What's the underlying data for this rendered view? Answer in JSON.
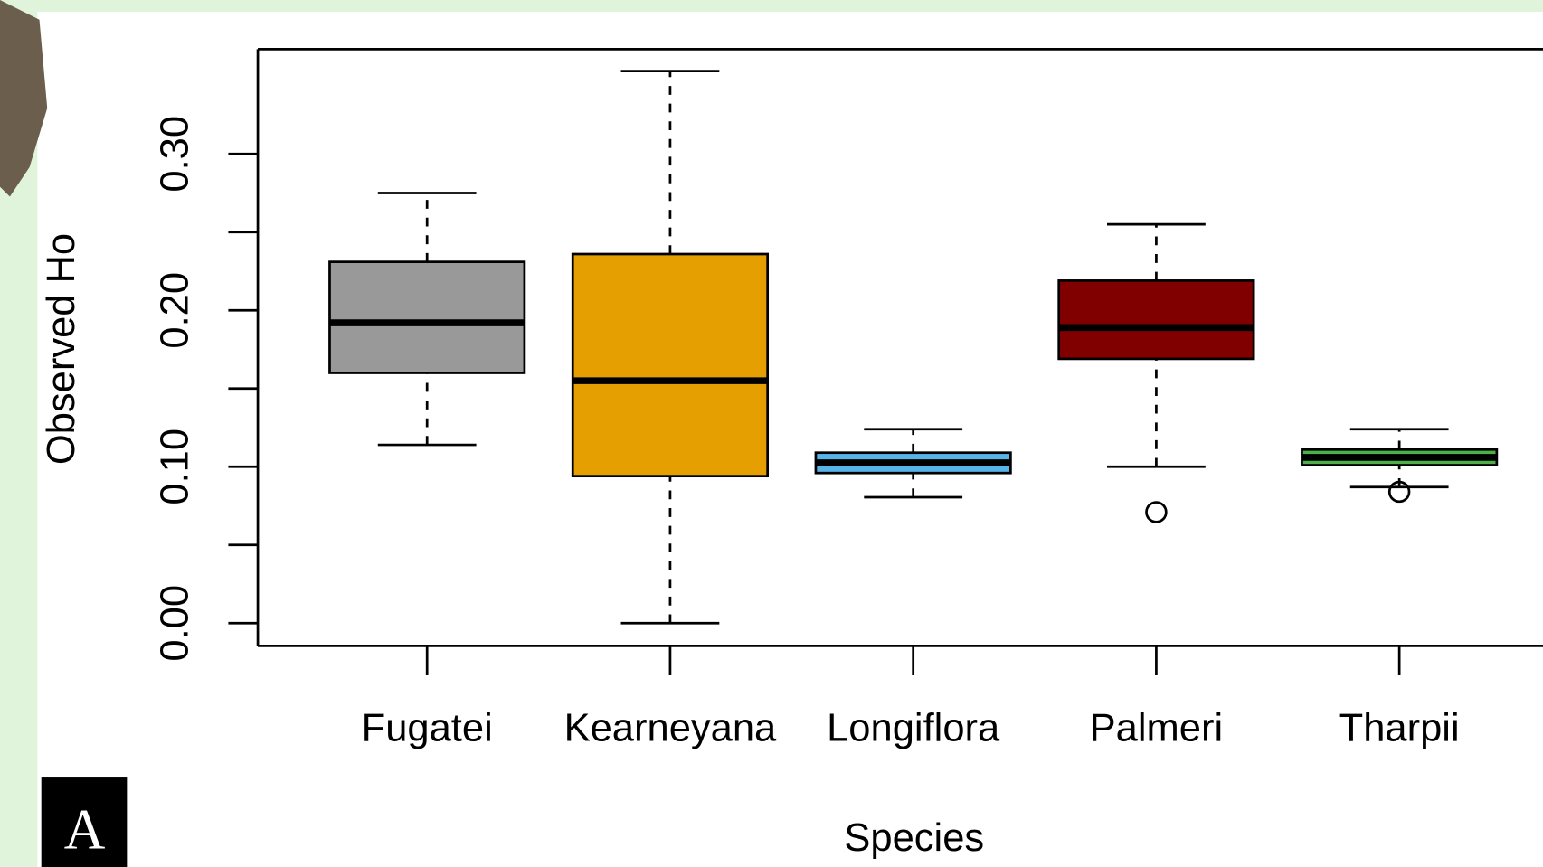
{
  "badge": "A",
  "chart_data": {
    "type": "box",
    "x_label": "Species",
    "y_label": "Observed Ho",
    "categories": [
      "Fugatei",
      "Kearneyana",
      "Longiflora",
      "Palmeri",
      "Tharpii"
    ],
    "colors": [
      "#999999",
      "#e69f00",
      "#56b4e9",
      "#800000",
      "#4daf4a"
    ],
    "boxes": [
      {
        "whisker_low": 0.114,
        "q1": 0.16,
        "median": 0.192,
        "q3": 0.231,
        "whisker_high": 0.275,
        "outliers": []
      },
      {
        "whisker_low": 0,
        "q1": 0.094,
        "median": 0.155,
        "q3": 0.236,
        "whisker_high": 0.353,
        "outliers": []
      },
      {
        "whisker_low": 0.0805,
        "q1": 0.096,
        "median": 0.1025,
        "q3": 0.109,
        "whisker_high": 0.124,
        "outliers": []
      },
      {
        "whisker_low": 0.1,
        "q1": 0.169,
        "median": 0.189,
        "q3": 0.219,
        "whisker_high": 0.255,
        "outliers": [
          0.071
        ]
      },
      {
        "whisker_low": 0.087,
        "q1": 0.101,
        "median": 0.106,
        "q3": 0.111,
        "whisker_high": 0.124,
        "outliers": [
          0.084
        ]
      }
    ],
    "ylim": [
      -0.0145,
      0.367
    ],
    "yticks": [
      {
        "value": 0,
        "label": "0.00"
      },
      {
        "value": 0.1,
        "label": "0.10"
      },
      {
        "value": 0.2,
        "label": "0.20"
      },
      {
        "value": 0.3,
        "label": "0.30"
      }
    ],
    "yminorticks": [
      0.05,
      0.15,
      0.25
    ]
  }
}
